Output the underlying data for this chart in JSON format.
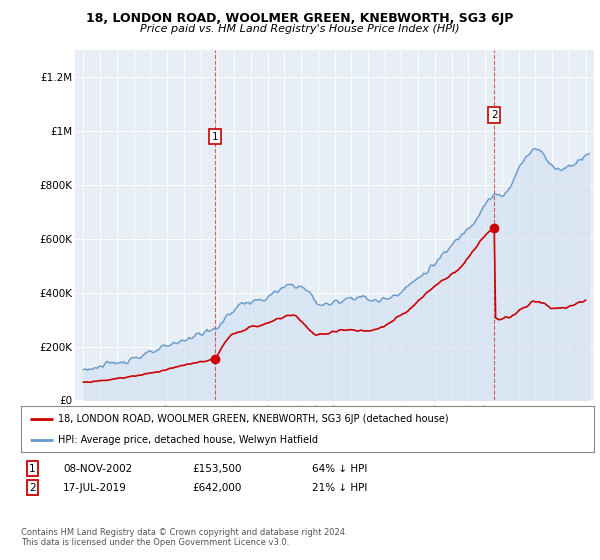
{
  "title_line1": "18, LONDON ROAD, WOOLMER GREEN, KNEBWORTH, SG3 6JP",
  "title_line2": "Price paid vs. HM Land Registry's House Price Index (HPI)",
  "background_color": "#ffffff",
  "plot_bg_color": "#e8eef5",
  "hpi_color": "#6699cc",
  "hpi_fill_color": "#d0dff0",
  "price_color": "#cc0000",
  "ylim": [
    0,
    1300000
  ],
  "yticks": [
    0,
    200000,
    400000,
    600000,
    800000,
    1000000,
    1200000
  ],
  "ytick_labels": [
    "£0",
    "£200K",
    "£400K",
    "£600K",
    "£800K",
    "£1M",
    "£1.2M"
  ],
  "sale1_price": 153500,
  "sale1_x": 2002.86,
  "sale1_label": "1",
  "sale2_price": 642000,
  "sale2_x": 2019.54,
  "sale2_label": "2",
  "legend_line1": "18, LONDON ROAD, WOOLMER GREEN, KNEBWORTH, SG3 6JP (detached house)",
  "legend_line2": "HPI: Average price, detached house, Welwyn Hatfield",
  "footer_line1": "Contains HM Land Registry data © Crown copyright and database right 2024.",
  "footer_line2": "This data is licensed under the Open Government Licence v3.0.",
  "table_row1": [
    "1",
    "08-NOV-2002",
    "£153,500",
    "64% ↓ HPI"
  ],
  "table_row2": [
    "2",
    "17-JUL-2019",
    "£642,000",
    "21% ↓ HPI"
  ]
}
